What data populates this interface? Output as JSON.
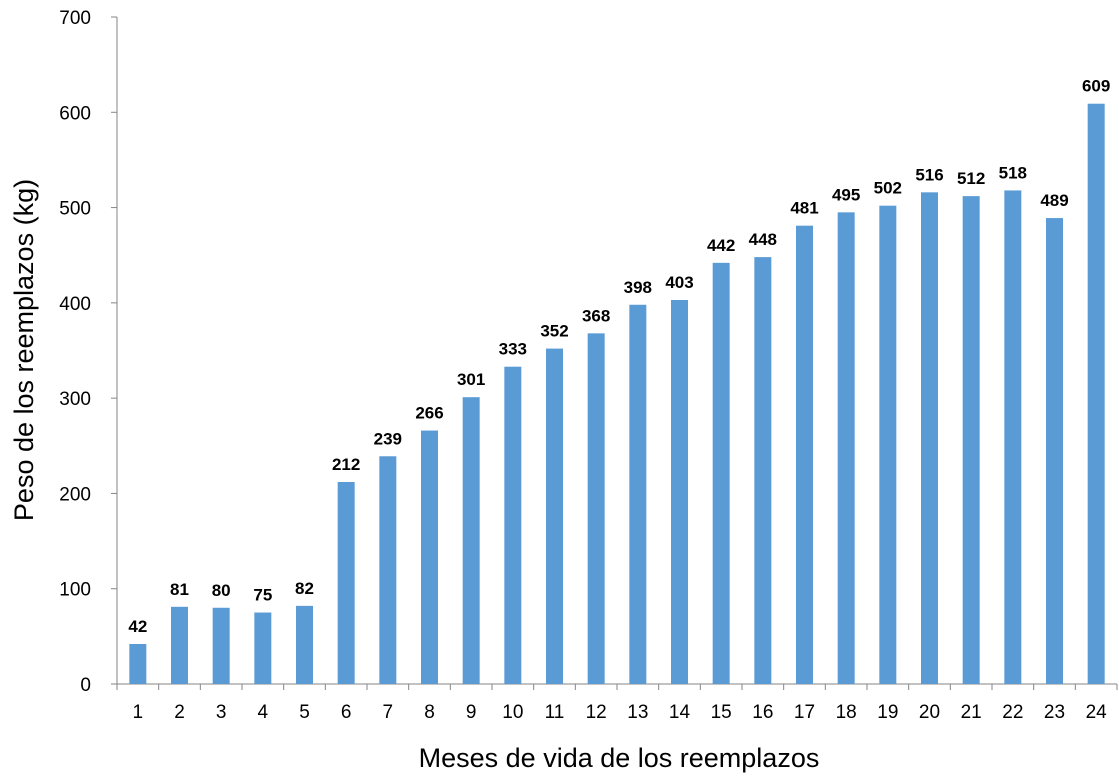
{
  "chart_data": {
    "type": "bar",
    "title": "",
    "xlabel": "Meses de vida de los reemplazos",
    "ylabel": "Peso de los reemplazos  (kg)",
    "ylim": [
      0,
      700
    ],
    "yticks": [
      0,
      100,
      200,
      300,
      400,
      500,
      600,
      700
    ],
    "grid": false,
    "legend": "none",
    "bar_color": "#5b9bd5",
    "categories": [
      "1",
      "2",
      "3",
      "4",
      "5",
      "6",
      "7",
      "8",
      "9",
      "10",
      "11",
      "12",
      "13",
      "14",
      "15",
      "16",
      "17",
      "18",
      "19",
      "20",
      "21",
      "22",
      "23",
      "24"
    ],
    "values": [
      42,
      81,
      80,
      75,
      82,
      212,
      239,
      266,
      301,
      333,
      352,
      368,
      398,
      403,
      442,
      448,
      481,
      495,
      502,
      516,
      512,
      518,
      489,
      609
    ]
  }
}
